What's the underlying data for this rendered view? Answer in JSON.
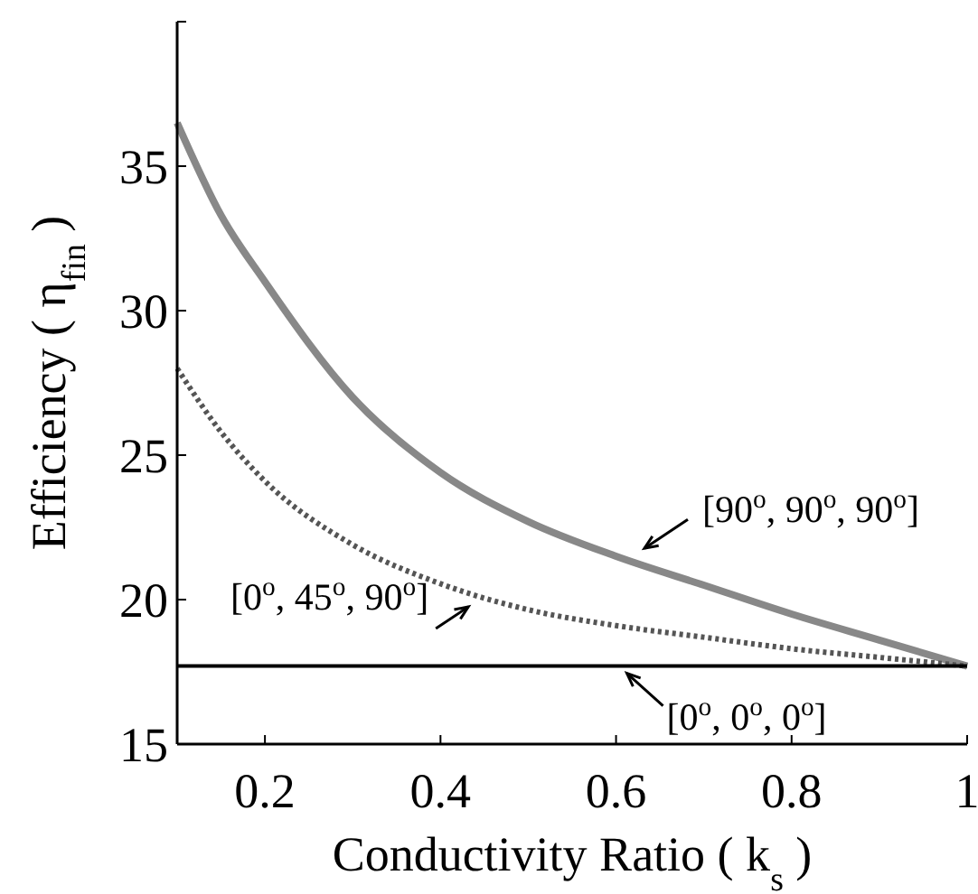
{
  "chart_data": {
    "type": "line",
    "xlabel": "Conductivity Ratio ( k$_{s}$ )",
    "ylabel": "Efficiency ( η$_{fin}$ )",
    "x": [
      0.1,
      0.15,
      0.2,
      0.3,
      0.4,
      0.5,
      0.6,
      0.7,
      0.8,
      0.9,
      1
    ],
    "series": [
      {
        "color": "#888888",
        "line_style": "solid",
        "values": [
          36.5,
          33.3,
          31.0,
          27.0,
          24.4,
          22.7,
          21.5,
          20.5,
          19.5,
          18.6,
          17.7
        ]
      },
      {
        "color": "#555555",
        "line_style": "dotted",
        "values": [
          28.0,
          25.8,
          24.1,
          21.9,
          20.55,
          19.65,
          19.1,
          18.7,
          18.3,
          18.0,
          17.7
        ]
      },
      {
        "color": "#000000",
        "line_style": "solid",
        "values": [
          17.7,
          17.7,
          17.7,
          17.7,
          17.7,
          17.7,
          17.7,
          17.7,
          17.7,
          17.7,
          17.7
        ]
      }
    ],
    "xlim": [
      0.1,
      1
    ],
    "xticks": [
      0.2,
      0.4,
      0.6,
      0.8,
      1
    ],
    "ylim": [
      15,
      40
    ],
    "yticks": [
      15,
      20,
      25,
      30,
      35
    ],
    "grid": false,
    "marker": "none",
    "annotations": [
      {
        "text": "[90$^{o}$, 90$^{o}$, 90$^{o}$]",
        "x": 0.62,
        "y": 21.4
      },
      {
        "text": "[0$^{o}$, 45$^{o}$, 90$^{o}$]",
        "x": 0.44,
        "y": 20.0
      },
      {
        "text": "[0$^{o}$, 0$^{o}$, 0$^{o}$]",
        "x": 0.6,
        "y": 17.7
      }
    ]
  }
}
